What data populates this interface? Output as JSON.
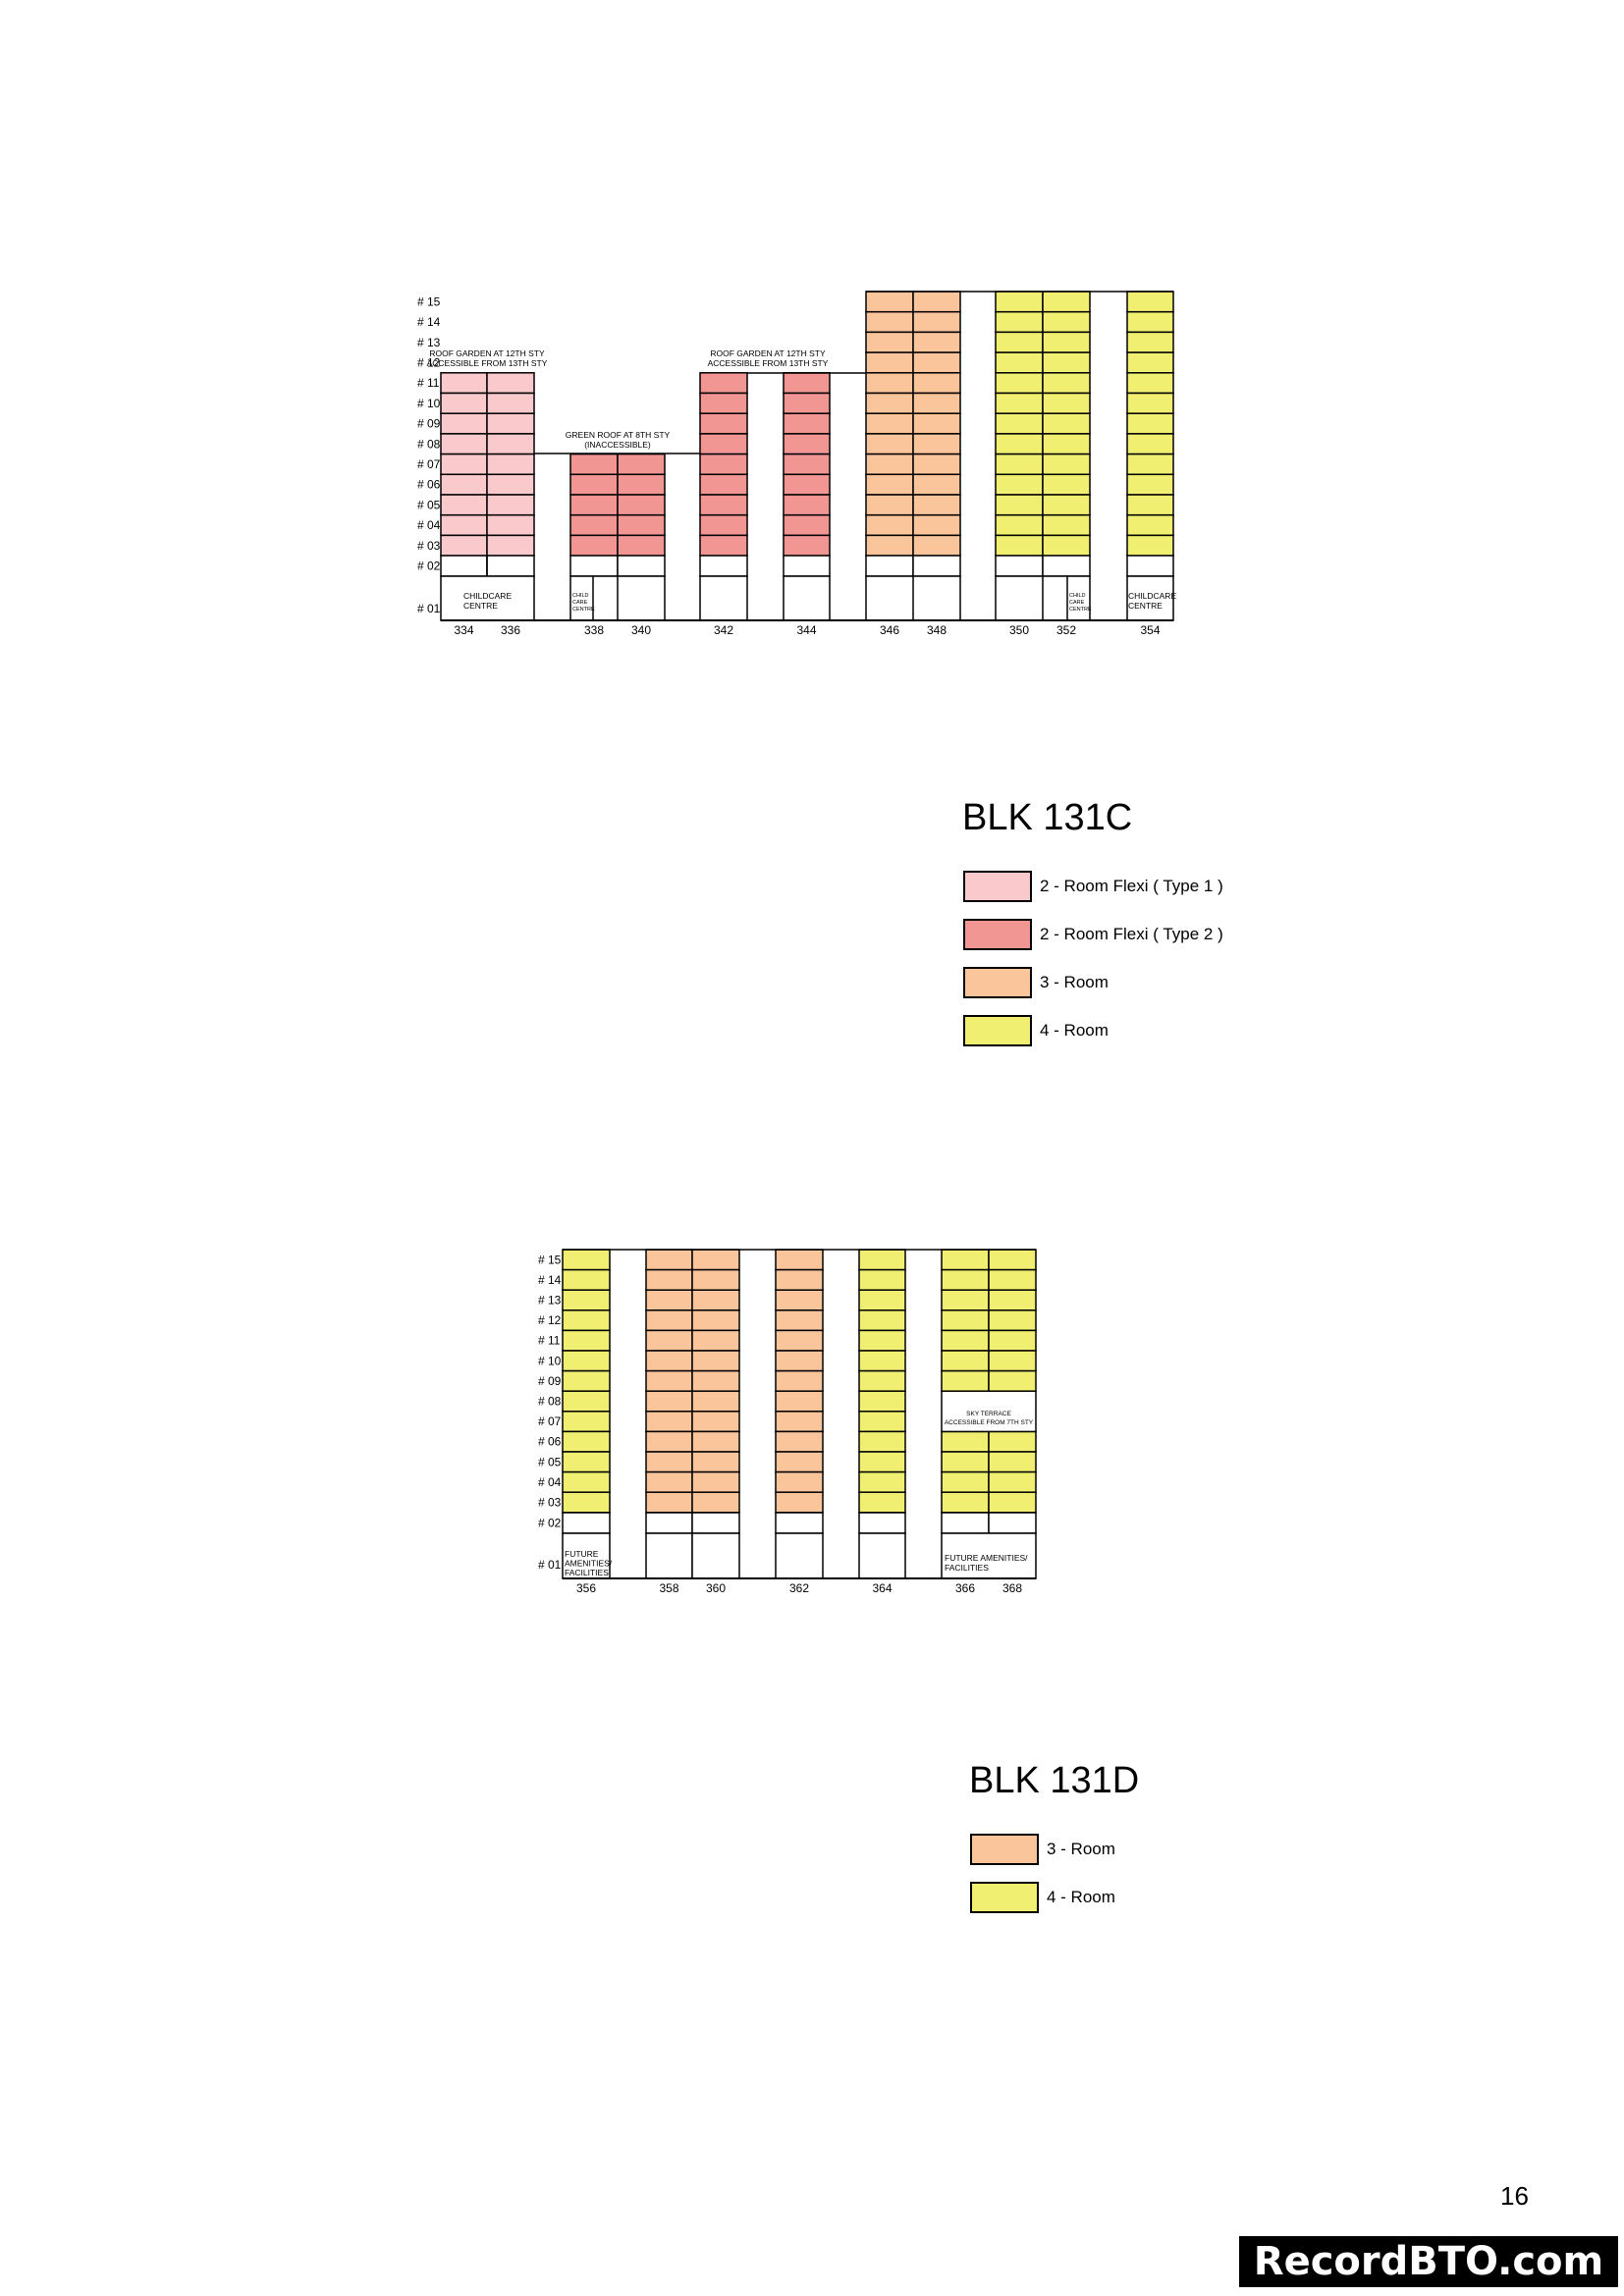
{
  "colors": {
    "flexi_type1": "#f9c9cb",
    "flexi_type2": "#f29694",
    "three_room": "#fbc59c",
    "four_room": "#f1ef71",
    "line": "#000000"
  },
  "blk131c": {
    "title": "BLK 131C",
    "floor_labels": [
      "# 15",
      "# 14",
      "# 13",
      "# 12",
      "# 11",
      "# 10",
      "# 09",
      "# 08",
      "# 07",
      "# 06",
      "# 05",
      "# 04",
      "# 03",
      "# 02",
      "# 01"
    ],
    "annotations": {
      "roof_garden_left": [
        "ROOF GARDEN AT 12TH STY",
        "ACCESSIBLE FROM 13TH STY"
      ],
      "green_roof": [
        "GREEN ROOF AT 8TH STY",
        "(INACCESSIBLE)"
      ],
      "roof_garden_mid": [
        "ROOF GARDEN AT 12TH STY",
        "ACCESSIBLE FROM 13TH STY"
      ],
      "childcare_334": [
        "CHILDCARE",
        "CENTRE"
      ],
      "childcare_338": [
        "CHILD",
        "CARE",
        "CENTRE"
      ],
      "childcare_352": [
        "CHILD",
        "CARE",
        "CENTRE"
      ],
      "childcare_354": [
        "CHILDCARE",
        "CENTRE"
      ]
    },
    "units": [
      {
        "no": "334",
        "type": "flexi_type1",
        "top_floor": 11
      },
      {
        "no": "336",
        "type": "flexi_type1",
        "top_floor": 11
      },
      {
        "no": "338",
        "type": "flexi_type2",
        "top_floor": 7
      },
      {
        "no": "340",
        "type": "flexi_type2",
        "top_floor": 7
      },
      {
        "no": "342",
        "type": "flexi_type2",
        "top_floor": 11
      },
      {
        "no": "344",
        "type": "flexi_type2",
        "top_floor": 11
      },
      {
        "no": "346",
        "type": "three_room",
        "top_floor": 15
      },
      {
        "no": "348",
        "type": "three_room",
        "top_floor": 15
      },
      {
        "no": "350",
        "type": "four_room",
        "top_floor": 15
      },
      {
        "no": "352",
        "type": "four_room",
        "top_floor": 15
      },
      {
        "no": "354",
        "type": "four_room",
        "top_floor": 15
      }
    ],
    "legend": [
      {
        "type": "flexi_type1",
        "label": "2 - Room Flexi ( Type 1 )"
      },
      {
        "type": "flexi_type2",
        "label": "2 - Room Flexi ( Type 2 )"
      },
      {
        "type": "three_room",
        "label": "3 - Room"
      },
      {
        "type": "four_room",
        "label": "4 - Room"
      }
    ]
  },
  "blk131d": {
    "title": "BLK 131D",
    "floor_labels": [
      "# 15",
      "# 14",
      "# 13",
      "# 12",
      "# 11",
      "# 10",
      "# 09",
      "# 08",
      "# 07",
      "# 06",
      "# 05",
      "# 04",
      "# 03",
      "# 02",
      "# 01"
    ],
    "annotations": {
      "future_356": [
        "FUTURE",
        "AMENITIES/",
        "FACILITIES"
      ],
      "sky_terrace": [
        "SKY TERRACE",
        "ACCESSIBLE FROM 7TH STY"
      ],
      "future_366": [
        "FUTURE AMENITIES/",
        "FACILITIES"
      ]
    },
    "units": [
      {
        "no": "356",
        "type": "four_room",
        "top_floor": 15
      },
      {
        "no": "358",
        "type": "three_room",
        "top_floor": 15
      },
      {
        "no": "360",
        "type": "three_room",
        "top_floor": 15
      },
      {
        "no": "362",
        "type": "three_room",
        "top_floor": 15
      },
      {
        "no": "364",
        "type": "four_room",
        "top_floor": 15
      },
      {
        "no": "366",
        "type": "four_room",
        "top_floor": 15
      },
      {
        "no": "368",
        "type": "four_room",
        "top_floor": 15
      }
    ],
    "legend": [
      {
        "type": "three_room",
        "label": "3 - Room"
      },
      {
        "type": "four_room",
        "label": "4 - Room"
      }
    ]
  },
  "page_number": "16",
  "watermark": "RecordBTO.com"
}
